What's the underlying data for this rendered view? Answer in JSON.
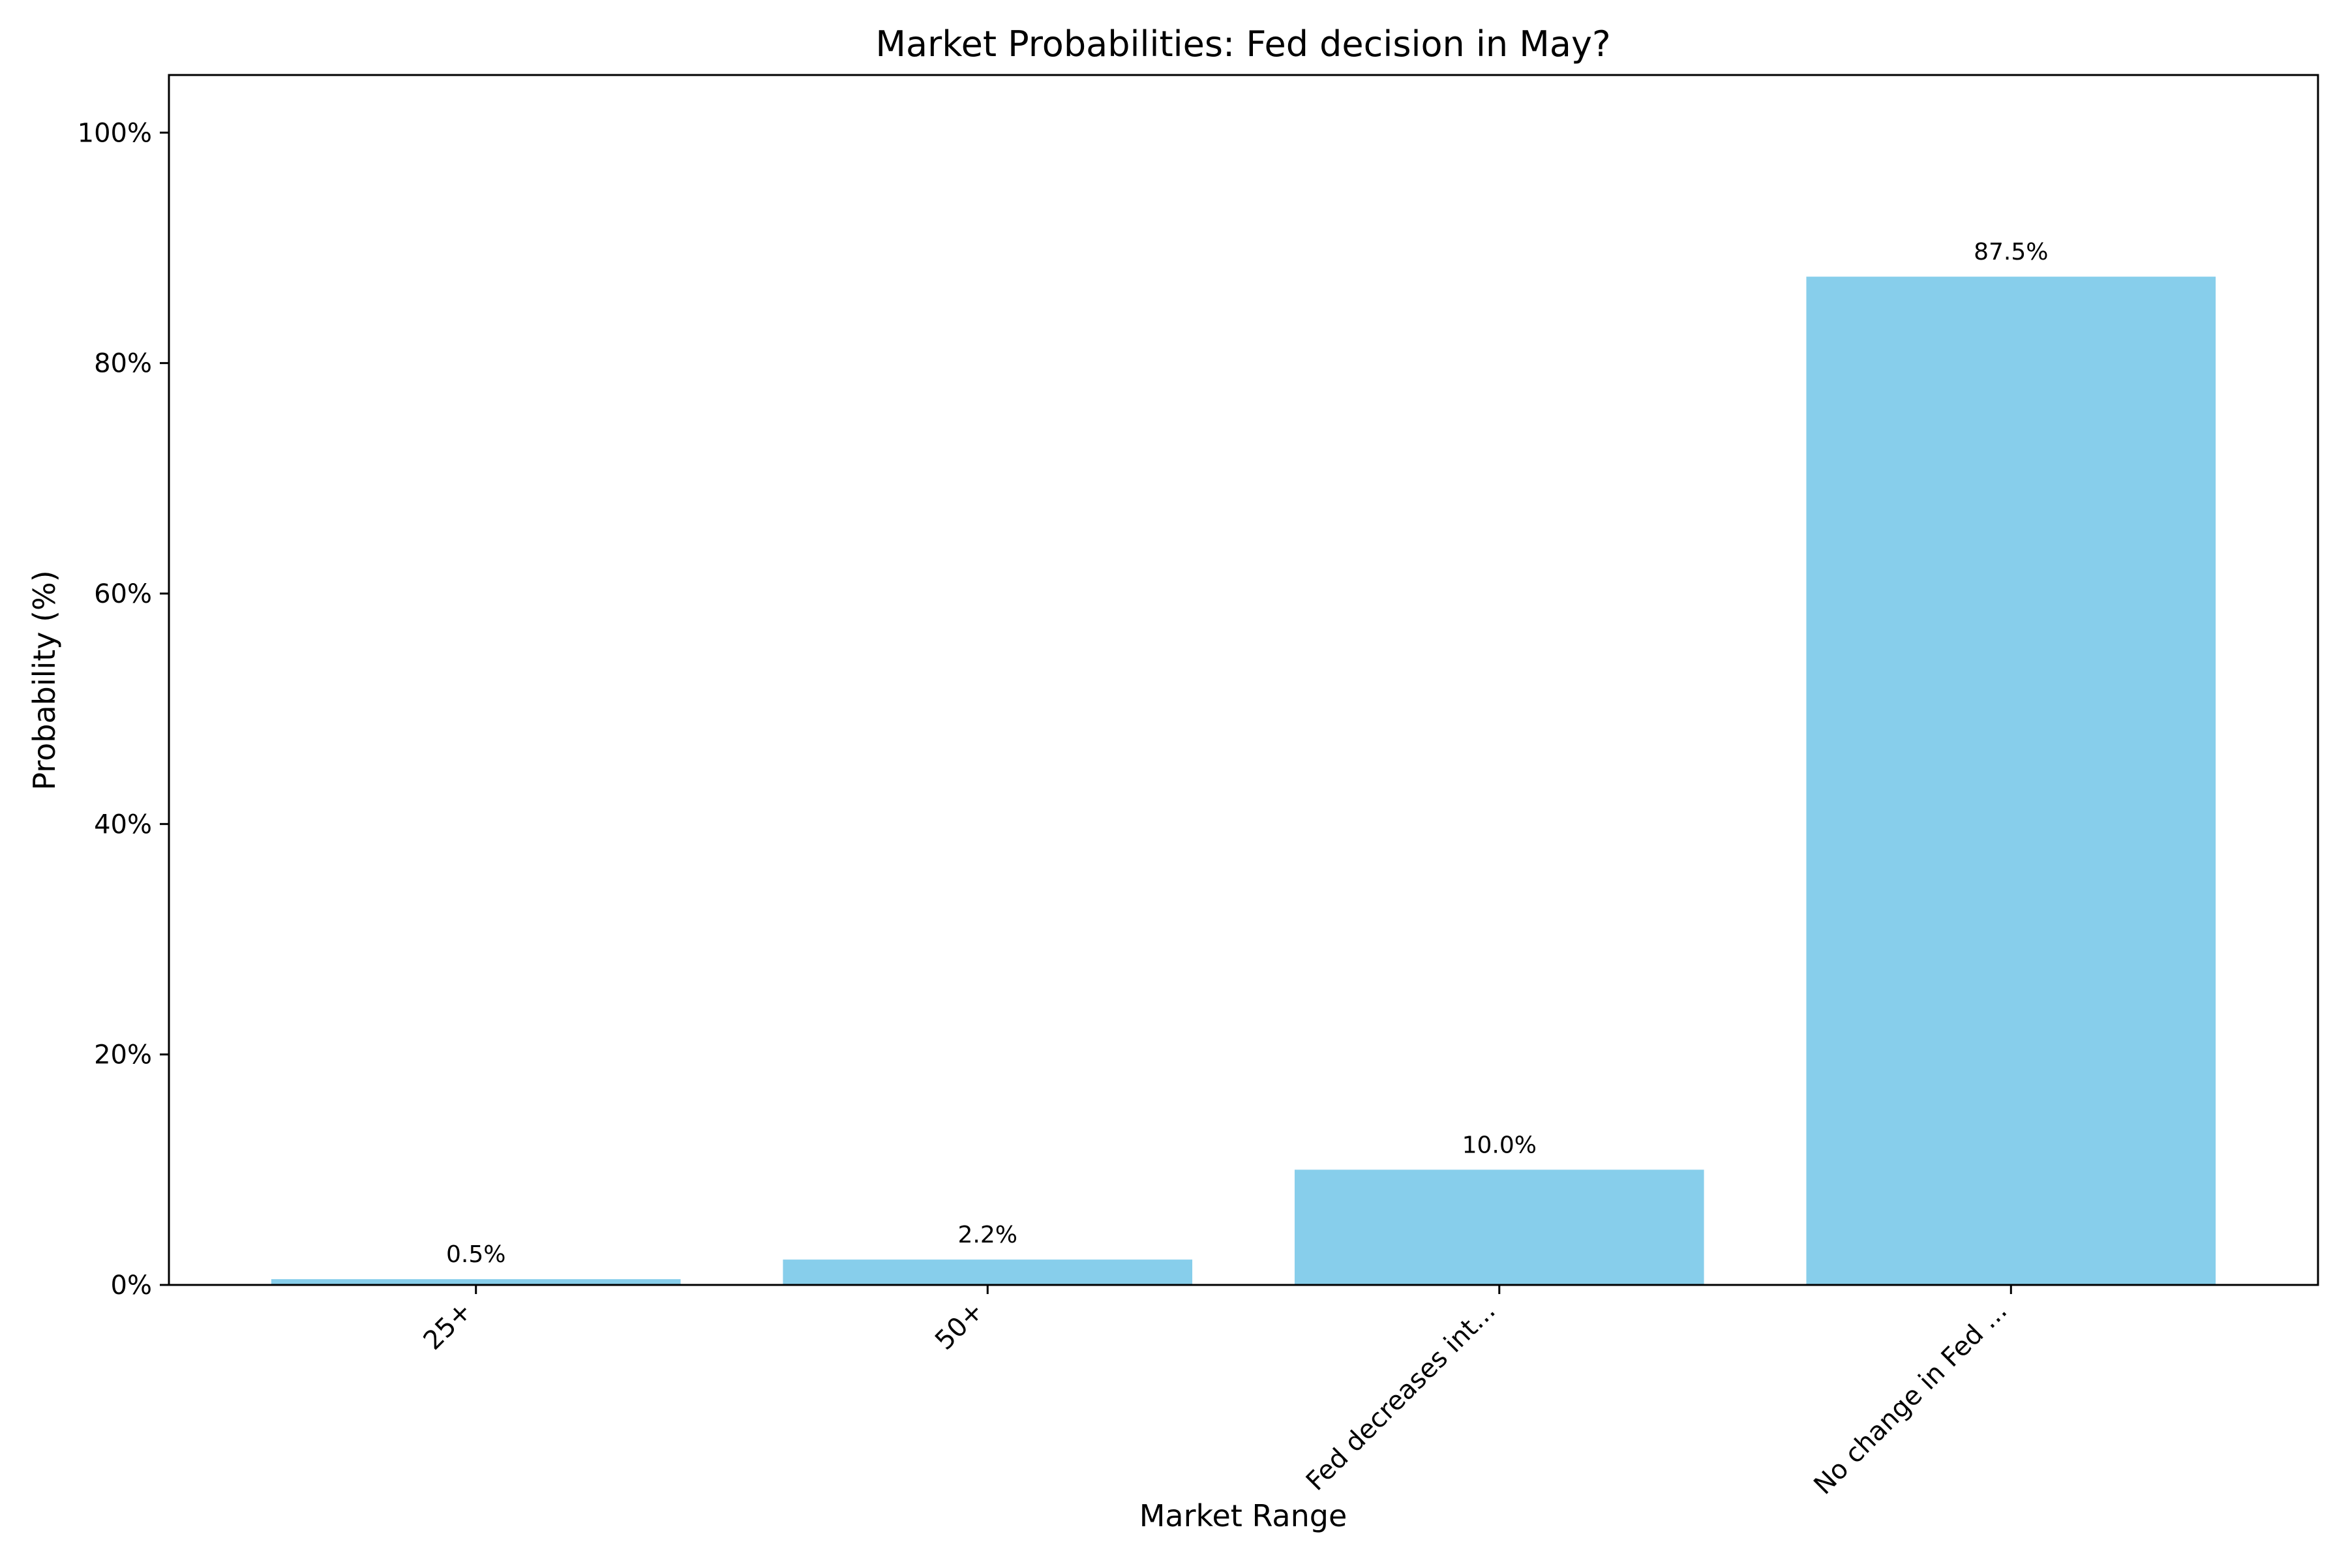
{
  "chart_data": {
    "type": "bar",
    "title": "Market Probabilities: Fed decision in May?",
    "xlabel": "Market Range",
    "ylabel": "Probability (%)",
    "categories": [
      "25+",
      "50+",
      "Fed decreases int...",
      "No change in Fed ..."
    ],
    "values": [
      0.5,
      2.2,
      10.0,
      87.5
    ],
    "value_labels": [
      "0.5%",
      "2.2%",
      "10.0%",
      "87.5%"
    ],
    "ylim": [
      0,
      105
    ],
    "yticks": [
      0,
      20,
      40,
      60,
      80,
      100
    ],
    "ytick_labels": [
      "0%",
      "20%",
      "40%",
      "60%",
      "80%",
      "100%"
    ],
    "bar_color": "#87CEEB",
    "grid": false,
    "legend": "none"
  }
}
